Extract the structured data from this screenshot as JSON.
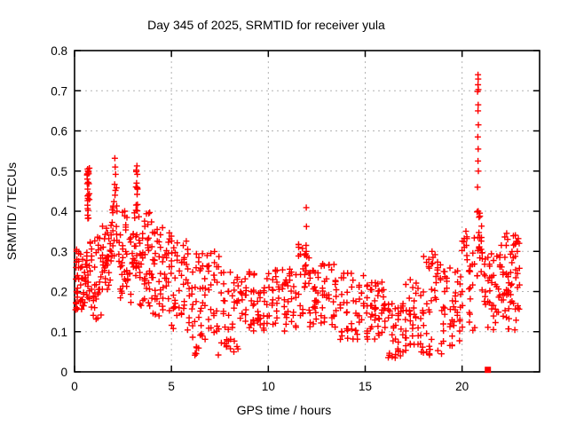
{
  "chart_data": {
    "type": "scatter",
    "title": "Day 345 of 2025, SRMTID for receiver yula",
    "xlabel": "GPS time / hours",
    "ylabel": "SRMTID / TECUs",
    "xlim": [
      0,
      24
    ],
    "ylim": [
      0,
      0.8
    ],
    "xticks": [
      {
        "v": 0,
        "label": "0"
      },
      {
        "v": 5,
        "label": "5"
      },
      {
        "v": 10,
        "label": "10"
      },
      {
        "v": 15,
        "label": "15"
      },
      {
        "v": 20,
        "label": "20"
      }
    ],
    "yticks": [
      {
        "v": 0,
        "label": "0"
      },
      {
        "v": 0.1,
        "label": "0.1"
      },
      {
        "v": 0.2,
        "label": "0.2"
      },
      {
        "v": 0.3,
        "label": "0.3"
      },
      {
        "v": 0.4,
        "label": "0.4"
      },
      {
        "v": 0.5,
        "label": "0.5"
      },
      {
        "v": 0.6,
        "label": "0.6"
      },
      {
        "v": 0.7,
        "label": "0.7"
      },
      {
        "v": 0.8,
        "label": "0.8"
      }
    ],
    "grid": true,
    "legend": "none",
    "colors": {
      "marker": "#ff0000",
      "grid": "#b3b3b3",
      "frame": "#000000"
    },
    "marker": {
      "shape": "plus",
      "size": 7
    },
    "outlier": {
      "x": 21.33,
      "y": 0.005,
      "shape": "filled-square",
      "color": "#ff0000"
    },
    "points": [
      [
        0.1,
        0.3
      ],
      [
        0.12,
        0.28
      ],
      [
        0.08,
        0.26
      ],
      [
        0.15,
        0.24
      ],
      [
        0.05,
        0.155
      ],
      [
        0.68,
        0.505
      ],
      [
        0.7,
        0.5
      ],
      [
        0.72,
        0.497
      ],
      [
        0.69,
        0.5
      ],
      [
        0.66,
        0.48
      ],
      [
        0.7,
        0.472
      ],
      [
        0.68,
        0.455
      ],
      [
        0.71,
        0.44
      ],
      [
        0.69,
        0.432
      ],
      [
        0.67,
        0.415
      ],
      [
        0.7,
        0.402
      ],
      [
        0.68,
        0.39
      ],
      [
        0.72,
        0.383
      ],
      [
        2.08,
        0.532
      ],
      [
        2.1,
        0.51
      ],
      [
        2.12,
        0.492
      ],
      [
        2.07,
        0.467
      ],
      [
        2.11,
        0.452
      ],
      [
        2.09,
        0.44
      ],
      [
        3.22,
        0.513
      ],
      [
        3.24,
        0.492
      ],
      [
        3.2,
        0.47
      ],
      [
        3.25,
        0.455
      ],
      [
        3.23,
        0.442
      ],
      [
        11.96,
        0.409
      ],
      [
        11.97,
        0.362
      ],
      [
        11.95,
        0.315
      ],
      [
        11.96,
        0.3
      ],
      [
        11.98,
        0.287
      ],
      [
        11.94,
        0.266
      ],
      [
        11.95,
        0.252
      ],
      [
        20.82,
        0.74
      ],
      [
        20.83,
        0.729
      ],
      [
        20.82,
        0.715
      ],
      [
        20.84,
        0.703
      ],
      [
        20.8,
        0.698
      ],
      [
        20.83,
        0.665
      ],
      [
        20.82,
        0.65
      ],
      [
        20.84,
        0.615
      ],
      [
        20.81,
        0.585
      ],
      [
        20.83,
        0.555
      ],
      [
        20.82,
        0.525
      ],
      [
        20.84,
        0.5
      ],
      [
        20.8,
        0.46
      ],
      [
        20.83,
        0.4
      ],
      [
        20.82,
        0.335
      ],
      [
        20.81,
        0.302
      ],
      [
        6.28,
        0.045
      ],
      [
        6.31,
        0.06
      ],
      [
        7.42,
        0.042
      ],
      [
        8.22,
        0.05
      ],
      [
        16.55,
        0.035
      ],
      [
        16.82,
        0.04
      ],
      [
        17.9,
        0.05
      ],
      [
        18.32,
        0.042
      ],
      [
        18.35,
        0.056
      ],
      [
        18.45,
        0.3
      ],
      [
        18.5,
        0.285
      ],
      [
        18.48,
        0.27
      ],
      [
        20.2,
        0.35
      ],
      [
        20.25,
        0.332
      ],
      [
        20.22,
        0.315
      ],
      [
        22.3,
        0.345
      ],
      [
        22.35,
        0.33
      ],
      [
        22.28,
        0.315
      ],
      [
        22.75,
        0.34
      ],
      [
        22.8,
        0.325
      ],
      [
        22.9,
        0.332
      ],
      [
        22.85,
        0.3
      ]
    ],
    "bands": [
      {
        "x0": 0.02,
        "x1": 0.5,
        "n": 30,
        "ylo": 0.15,
        "yhi": 0.31
      },
      {
        "x0": 0.5,
        "x1": 0.78,
        "n": 18,
        "ylo": 0.17,
        "yhi": 0.3
      },
      {
        "x0": 0.62,
        "x1": 0.78,
        "n": 16,
        "ylo": 0.38,
        "yhi": 0.51
      },
      {
        "x0": 0.78,
        "x1": 1.4,
        "n": 35,
        "ylo": 0.13,
        "yhi": 0.34
      },
      {
        "x0": 1.4,
        "x1": 1.95,
        "n": 40,
        "ylo": 0.2,
        "yhi": 0.41
      },
      {
        "x0": 1.95,
        "x1": 2.25,
        "n": 14,
        "ylo": 0.28,
        "yhi": 0.46
      },
      {
        "x0": 2.25,
        "x1": 3.0,
        "n": 45,
        "ylo": 0.16,
        "yhi": 0.4
      },
      {
        "x0": 3.0,
        "x1": 3.35,
        "n": 20,
        "ylo": 0.22,
        "yhi": 0.4
      },
      {
        "x0": 3.15,
        "x1": 3.3,
        "n": 8,
        "ylo": 0.4,
        "yhi": 0.51
      },
      {
        "x0": 3.35,
        "x1": 4.0,
        "n": 40,
        "ylo": 0.16,
        "yhi": 0.4
      },
      {
        "x0": 4.0,
        "x1": 5.0,
        "n": 50,
        "ylo": 0.13,
        "yhi": 0.36
      },
      {
        "x0": 5.0,
        "x1": 6.0,
        "n": 45,
        "ylo": 0.1,
        "yhi": 0.33
      },
      {
        "x0": 6.0,
        "x1": 6.5,
        "n": 25,
        "ylo": 0.04,
        "yhi": 0.3
      },
      {
        "x0": 6.5,
        "x1": 7.5,
        "n": 40,
        "ylo": 0.08,
        "yhi": 0.3
      },
      {
        "x0": 7.5,
        "x1": 8.5,
        "n": 40,
        "ylo": 0.05,
        "yhi": 0.25
      },
      {
        "x0": 8.5,
        "x1": 10.0,
        "n": 55,
        "ylo": 0.1,
        "yhi": 0.25
      },
      {
        "x0": 10.0,
        "x1": 11.5,
        "n": 55,
        "ylo": 0.1,
        "yhi": 0.26
      },
      {
        "x0": 11.5,
        "x1": 12.1,
        "n": 25,
        "ylo": 0.14,
        "yhi": 0.32
      },
      {
        "x0": 12.1,
        "x1": 13.5,
        "n": 50,
        "ylo": 0.1,
        "yhi": 0.27
      },
      {
        "x0": 13.5,
        "x1": 15.0,
        "n": 50,
        "ylo": 0.08,
        "yhi": 0.25
      },
      {
        "x0": 15.0,
        "x1": 16.0,
        "n": 40,
        "ylo": 0.08,
        "yhi": 0.23
      },
      {
        "x0": 16.0,
        "x1": 17.0,
        "n": 40,
        "ylo": 0.03,
        "yhi": 0.18
      },
      {
        "x0": 17.0,
        "x1": 18.0,
        "n": 40,
        "ylo": 0.05,
        "yhi": 0.23
      },
      {
        "x0": 18.0,
        "x1": 19.0,
        "n": 40,
        "ylo": 0.04,
        "yhi": 0.3
      },
      {
        "x0": 19.0,
        "x1": 20.0,
        "n": 40,
        "ylo": 0.06,
        "yhi": 0.26
      },
      {
        "x0": 20.0,
        "x1": 20.7,
        "n": 28,
        "ylo": 0.1,
        "yhi": 0.35
      },
      {
        "x0": 20.75,
        "x1": 21.05,
        "n": 15,
        "ylo": 0.22,
        "yhi": 0.4
      },
      {
        "x0": 21.0,
        "x1": 22.0,
        "n": 45,
        "ylo": 0.1,
        "yhi": 0.3
      },
      {
        "x0": 22.0,
        "x1": 23.0,
        "n": 50,
        "ylo": 0.1,
        "yhi": 0.34
      }
    ]
  }
}
